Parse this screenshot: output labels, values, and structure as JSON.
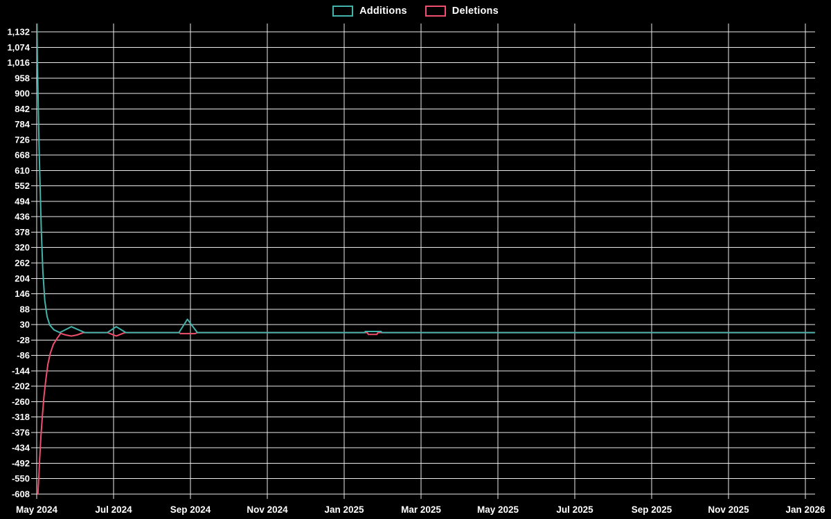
{
  "chart_data": {
    "type": "line",
    "title": "",
    "background": "#000000",
    "grid": true,
    "gridline_color": "#ececec",
    "legend_position": "top-center",
    "x_axis": {
      "x_encoding": "months_since_May_2024",
      "months_per_tick": 2,
      "tick_labels": [
        "May 2024",
        "Jul 2024",
        "Sep 2024",
        "Nov 2024",
        "Jan 2025",
        "Mar 2025",
        "May 2025",
        "Jul 2025",
        "Sep 2025",
        "Nov 2025",
        "Jan 2026"
      ]
    },
    "y_axis": {
      "ylim": [
        -608,
        1132
      ],
      "tick_step": 58,
      "tick_labels": [
        "1,132",
        "1,074",
        "1,016",
        "958",
        "900",
        "842",
        "784",
        "726",
        "668",
        "610",
        "552",
        "494",
        "436",
        "378",
        "320",
        "262",
        "204",
        "146",
        "88",
        "30",
        "-28",
        "-86",
        "-144",
        "-202",
        "-260",
        "-318",
        "-376",
        "-434",
        "-492",
        "-550",
        "-608"
      ]
    },
    "series": [
      {
        "name": "Additions",
        "color": "#43b3ab",
        "points": [
          [
            0.005,
            1180
          ],
          [
            0.02,
            1010
          ],
          [
            0.04,
            860
          ],
          [
            0.06,
            710
          ],
          [
            0.09,
            540
          ],
          [
            0.12,
            380
          ],
          [
            0.16,
            230
          ],
          [
            0.21,
            120
          ],
          [
            0.27,
            60
          ],
          [
            0.34,
            28
          ],
          [
            0.45,
            10
          ],
          [
            0.6,
            0
          ],
          [
            0.9,
            22
          ],
          [
            1.25,
            0
          ],
          [
            1.84,
            0
          ],
          [
            2.07,
            22
          ],
          [
            2.32,
            0
          ],
          [
            3.7,
            0
          ],
          [
            3.92,
            50
          ],
          [
            4.18,
            0
          ],
          [
            8.53,
            0
          ],
          [
            8.55,
            4
          ],
          [
            8.96,
            4
          ],
          [
            8.98,
            0
          ],
          [
            20.24,
            0
          ]
        ]
      },
      {
        "name": "Deletions",
        "color": "#f0506e",
        "points": [
          [
            0.03,
            -608
          ],
          [
            0.05,
            -555
          ],
          [
            0.08,
            -470
          ],
          [
            0.11,
            -390
          ],
          [
            0.15,
            -310
          ],
          [
            0.19,
            -240
          ],
          [
            0.24,
            -175
          ],
          [
            0.29,
            -120
          ],
          [
            0.35,
            -80
          ],
          [
            0.43,
            -45
          ],
          [
            0.53,
            -22
          ],
          [
            0.59,
            -10
          ],
          [
            0.62,
            -3
          ],
          [
            0.75,
            -9
          ],
          [
            0.9,
            -13
          ],
          [
            1.05,
            -9
          ],
          [
            1.22,
            0
          ],
          [
            1.84,
            0
          ],
          [
            2.07,
            -13
          ],
          [
            2.3,
            0
          ],
          [
            3.7,
            0
          ],
          [
            3.74,
            -4
          ],
          [
            4.12,
            -4
          ],
          [
            4.18,
            0
          ],
          [
            8.6,
            0
          ],
          [
            8.63,
            -7
          ],
          [
            8.85,
            -7
          ],
          [
            8.88,
            0
          ],
          [
            20.24,
            0
          ]
        ]
      }
    ]
  }
}
